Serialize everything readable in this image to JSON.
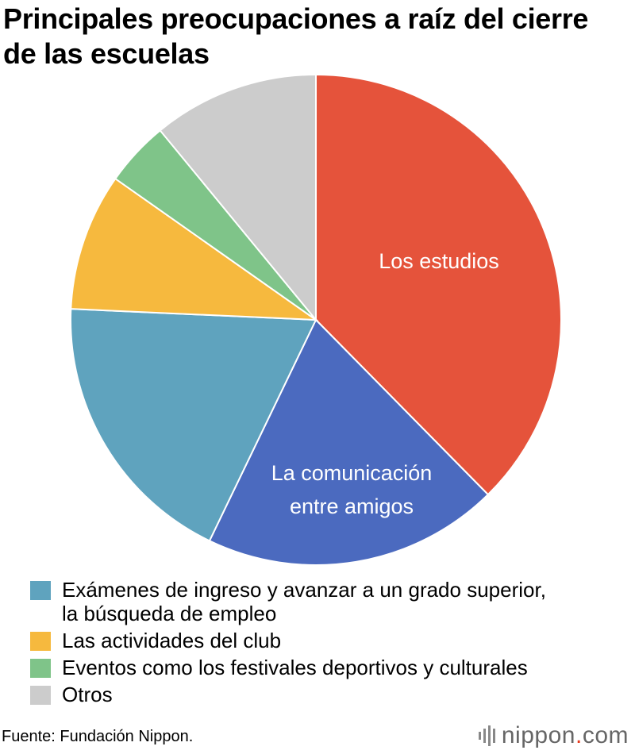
{
  "title": "Principales preocupaciones a raíz del cierre de las escuelas",
  "chart_data": {
    "type": "pie",
    "title": "Principales preocupaciones a raíz del cierre de las escuelas",
    "unit": "%",
    "start_angle_deg": 0,
    "direction": "clockwise",
    "slices": [
      {
        "label": "Los estudios",
        "value": 39.5,
        "color": "#e5533b",
        "inside_label": [
          "Los estudios"
        ]
      },
      {
        "label": "La comunicación entre amigos",
        "value": 20.5,
        "color": "#4b6abf",
        "inside_label": [
          "La comunicación",
          "entre amigos"
        ]
      },
      {
        "label": "Exámenes de ingreso y avanzar a un grado superior, la búsqueda de empleo",
        "value": 19.5,
        "color": "#5fa3be",
        "inside_label": []
      },
      {
        "label": "Las actividades del club",
        "value": 9.5,
        "color": "#f6b93e",
        "inside_label": []
      },
      {
        "label": "Eventos como los festivales deportivos y culturales",
        "value": 4.5,
        "color": "#7fc489",
        "inside_label": []
      },
      {
        "label": "Otros",
        "value": 11.5,
        "color": "#cccccc",
        "inside_label": []
      }
    ]
  },
  "legend": [
    {
      "lines": [
        "Exámenes de ingreso y avanzar a un grado superior,",
        "la búsqueda de empleo"
      ],
      "color": "#5fa3be"
    },
    {
      "lines": [
        "Las actividades del club"
      ],
      "color": "#f6b93e"
    },
    {
      "lines": [
        "Eventos como los festivales deportivos y culturales"
      ],
      "color": "#7fc489"
    },
    {
      "lines": [
        "Otros"
      ],
      "color": "#cccccc"
    }
  ],
  "source": "Fuente: Fundación Nippon.",
  "logo": {
    "name": "nippon",
    "dot": ".",
    "suffix": "com",
    "icon": "sound-bars-icon"
  }
}
